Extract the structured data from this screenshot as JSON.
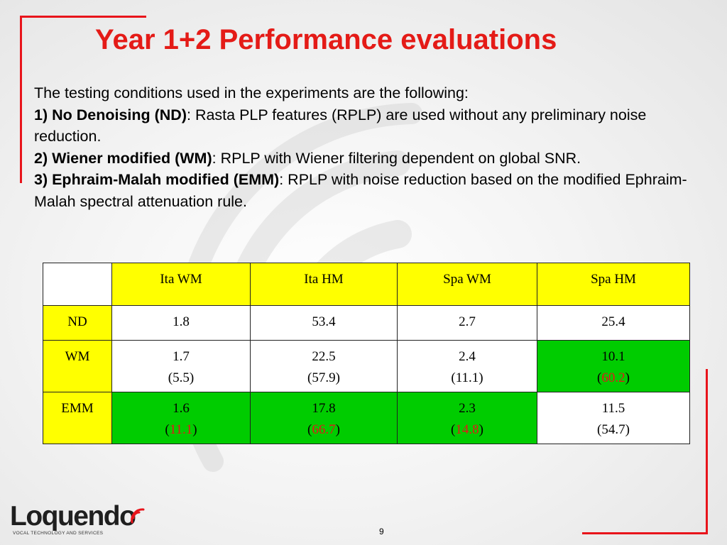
{
  "slide": {
    "title": "Year 1+2 Performance evaluations",
    "intro": "The testing conditions used in the experiments are the following:",
    "conditions": [
      {
        "bold": "1) No Denoising (ND)",
        "text": ": Rasta PLP features (RPLP) are used without any preliminary noise reduction."
      },
      {
        "bold": "2) Wiener modified (WM)",
        "text": ": RPLP with Wiener filtering dependent on global SNR."
      },
      {
        "bold": "3) Ephraim-Malah modified (EMM)",
        "text": ": RPLP with noise reduction based on the modified Ephraim-Malah spectral attenuation rule."
      }
    ],
    "page_number": "9"
  },
  "table": {
    "headers": [
      "",
      "Ita WM",
      "Ita HM",
      "Spa WM",
      "Spa HM"
    ],
    "rows": [
      {
        "label": "ND",
        "cells": [
          {
            "value": "1.8",
            "paren": ""
          },
          {
            "value": "53.4",
            "paren": ""
          },
          {
            "value": "2.7",
            "paren": ""
          },
          {
            "value": "25.4",
            "paren": ""
          }
        ]
      },
      {
        "label": "WM",
        "cells": [
          {
            "value": "1.7",
            "paren": "5.5"
          },
          {
            "value": "22.5",
            "paren": "57.9"
          },
          {
            "value": "2.4",
            "paren": "11.1"
          },
          {
            "value": "10.1",
            "paren": "60.2"
          }
        ]
      },
      {
        "label": "EMM",
        "cells": [
          {
            "value": "1.6",
            "paren": "11.1"
          },
          {
            "value": "17.8",
            "paren": "66.7"
          },
          {
            "value": "2.3",
            "paren": "14.8"
          },
          {
            "value": "11.5",
            "paren": "54.7"
          }
        ]
      }
    ]
  },
  "logo": {
    "name": "Loquendo",
    "tagline": "VOCAL TECHNOLOGY AND SERVICES"
  },
  "colors": {
    "title_red": "#e41b17",
    "accent_red": "#e8141b",
    "header_yellow": "#ffff00",
    "highlight_green": "#00cc00",
    "cell_white": "#ffffff"
  }
}
